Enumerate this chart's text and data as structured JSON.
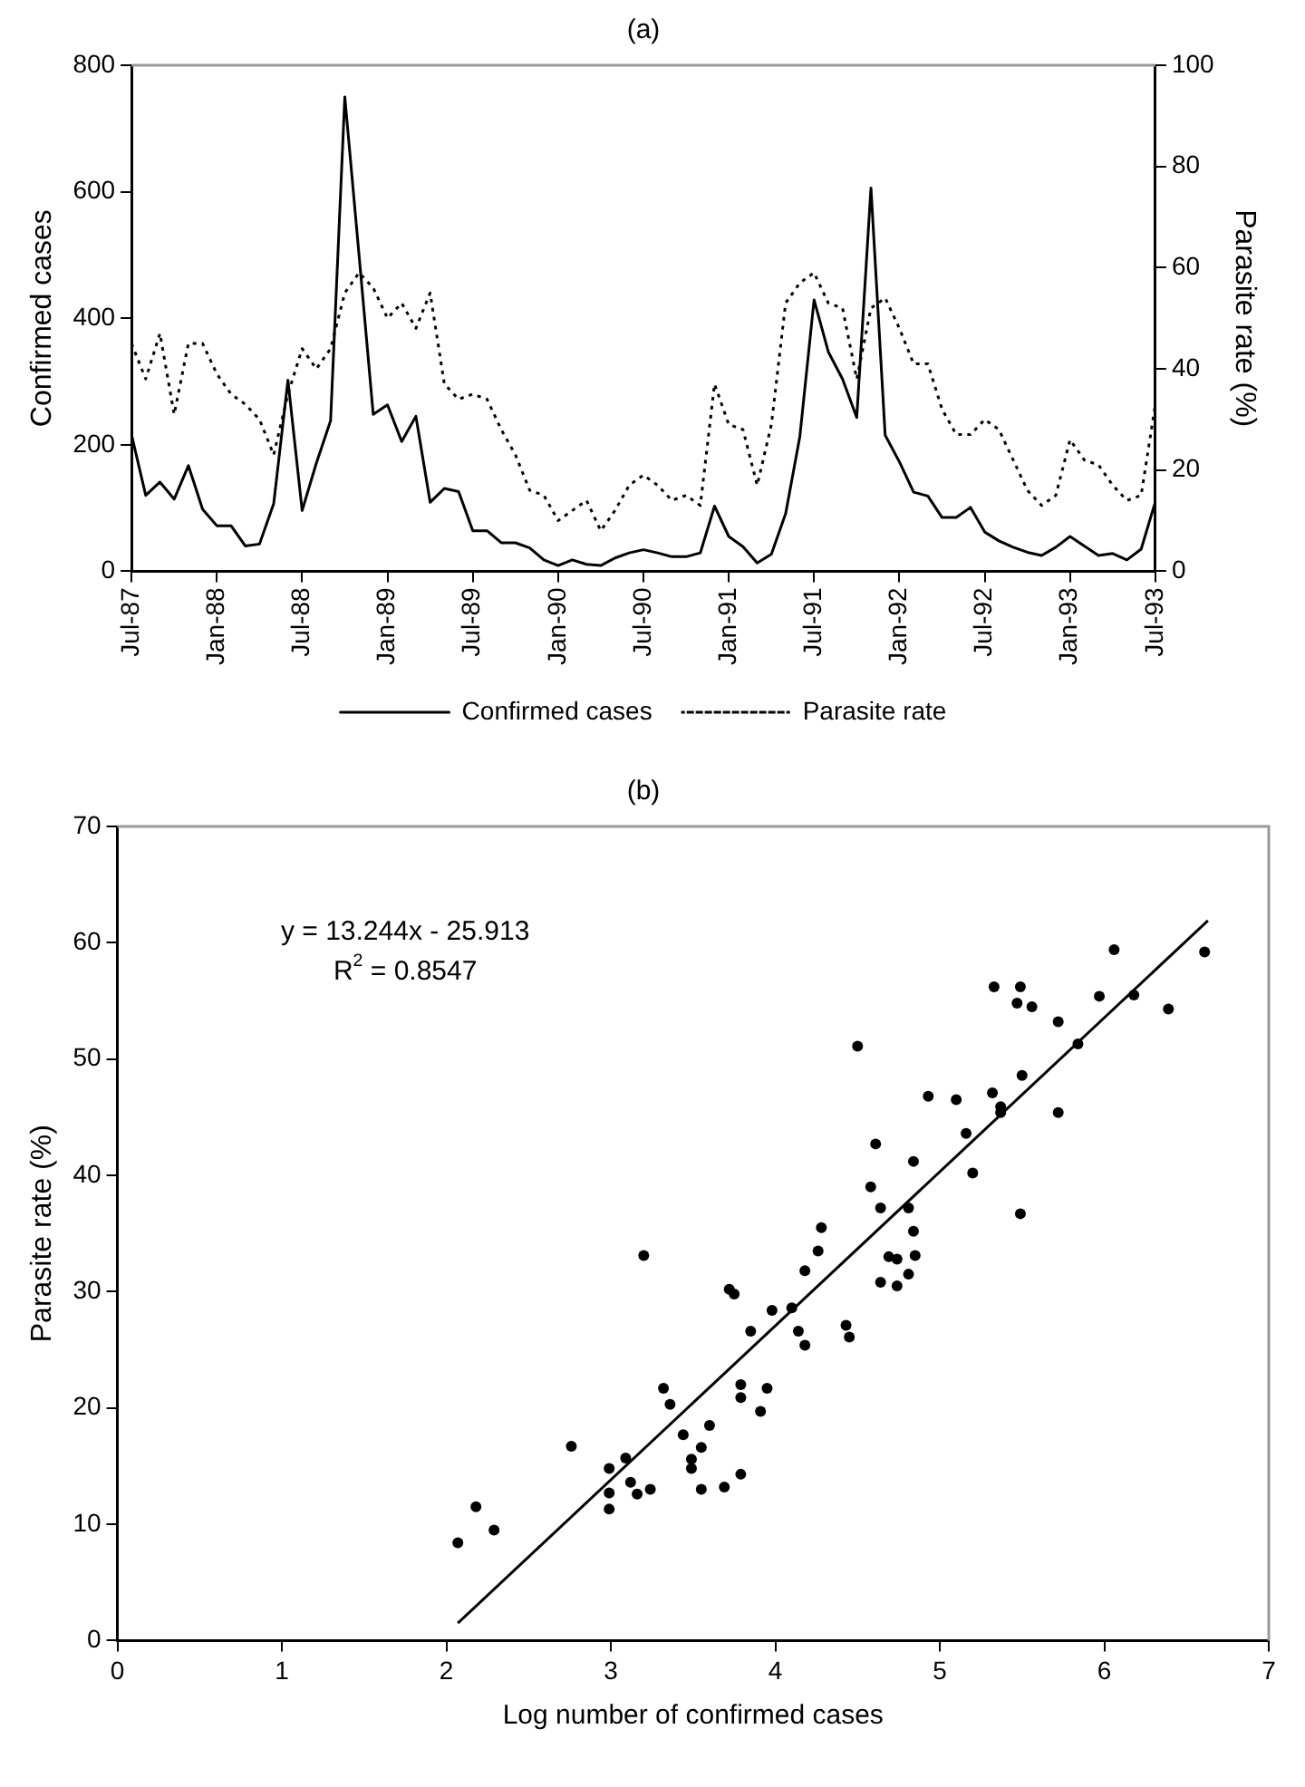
{
  "chart_data": [
    {
      "type": "line",
      "title": "(a)",
      "ylabel": "Confirmed cases",
      "y2label": "Parasite rate (%)",
      "categories": [
        "Jul-87",
        null,
        null,
        null,
        null,
        null,
        "Jan-88",
        null,
        null,
        null,
        null,
        null,
        "Jul-88",
        null,
        null,
        null,
        null,
        null,
        "Jan-89",
        null,
        null,
        null,
        null,
        null,
        "Jul-89",
        null,
        null,
        null,
        null,
        null,
        "Jan-90",
        null,
        null,
        null,
        null,
        null,
        "Jul-90",
        null,
        null,
        null,
        null,
        null,
        "Jan-91",
        null,
        null,
        null,
        null,
        null,
        "Jul-91",
        null,
        null,
        null,
        null,
        null,
        "Jan-92",
        null,
        null,
        null,
        null,
        null,
        "Jul-92",
        null,
        null,
        null,
        null,
        null,
        "Jan-93",
        null,
        null,
        null,
        null,
        null,
        "Jul-93"
      ],
      "series": [
        {
          "name": "Confirmed cases",
          "color": "#000000",
          "line_style": "solid",
          "values": [
            216,
            120,
            141,
            114,
            167,
            98,
            72,
            72,
            40,
            43,
            107,
            302,
            96,
            171,
            238,
            750,
            500,
            248,
            263,
            205,
            245,
            109,
            131,
            126,
            64,
            64,
            45,
            45,
            37,
            18,
            9,
            18,
            11,
            9,
            21,
            29,
            34,
            29,
            23,
            23,
            29,
            103,
            55,
            39,
            13,
            27,
            91,
            213,
            429,
            347,
            304,
            243,
            606,
            215,
            173,
            125,
            119,
            85,
            85,
            101,
            62,
            48,
            38,
            30,
            25,
            38,
            55,
            40,
            25,
            28,
            18,
            35,
            110
          ]
        },
        {
          "name": "Parasite rate",
          "color": "#000000",
          "axis": "y2",
          "line_style": "dotted",
          "values": [
            45,
            38,
            47,
            31,
            45,
            45,
            39,
            35,
            33,
            30,
            23,
            35,
            44,
            40,
            44,
            55,
            59,
            56,
            50,
            53,
            48,
            55,
            37,
            34,
            35,
            34,
            28,
            23,
            16,
            15,
            10,
            12,
            14,
            8,
            12,
            17,
            19,
            17,
            14,
            15,
            13,
            37,
            29,
            28,
            17,
            29,
            53,
            57,
            59,
            53,
            52,
            38,
            52,
            54,
            48,
            41,
            41,
            32,
            27,
            27,
            30,
            28,
            22,
            16,
            13,
            15,
            26,
            22,
            21,
            17,
            14,
            15,
            33
          ]
        }
      ],
      "ylim": [
        0,
        800
      ],
      "yticks": [
        0,
        200,
        400,
        600,
        800
      ],
      "y2lim": [
        0,
        100
      ],
      "y2ticks": [
        0,
        20,
        40,
        60,
        80,
        100
      ],
      "marker": "none",
      "legend": "bottom",
      "grid": false
    },
    {
      "type": "scatter",
      "title": "(b)",
      "xlabel": "Log number of confirmed cases",
      "ylabel": "Parasite rate (%)",
      "annotations": [
        "y = 13.244x - 25.913",
        "R$^{2}$ = 0.8547"
      ],
      "series": [
        {
          "color": "#000000",
          "x": [
            2.07,
            2.18,
            2.29,
            2.76,
            2.99,
            2.99,
            2.99,
            3.09,
            3.12,
            3.16,
            3.24,
            3.2,
            3.32,
            3.36,
            3.44,
            3.49,
            3.49,
            3.55,
            3.55,
            3.6,
            3.69,
            3.79,
            3.79,
            3.79,
            3.91,
            3.95,
            3.72,
            3.75,
            3.85,
            3.98,
            4.1,
            4.14,
            4.18,
            4.18,
            4.26,
            4.28,
            4.43,
            4.45,
            4.5,
            4.58,
            4.61,
            4.64,
            4.64,
            4.69,
            4.74,
            4.74,
            4.81,
            4.81,
            4.84,
            4.84,
            4.85,
            4.93,
            5.1,
            5.16,
            5.2,
            5.32,
            5.33,
            5.37,
            5.37,
            5.49,
            5.47,
            5.5,
            5.56,
            5.49,
            5.72,
            5.72,
            5.84,
            5.97,
            6.06,
            6.18,
            6.39,
            6.61
          ],
          "values": [
            8.4,
            11.5,
            9.5,
            16.7,
            14.8,
            12.7,
            11.3,
            15.7,
            13.6,
            12.6,
            13,
            33.1,
            21.7,
            20.3,
            17.7,
            15.6,
            14.8,
            16.6,
            13,
            18.5,
            13.2,
            14.3,
            22,
            20.9,
            19.7,
            21.7,
            30.2,
            29.8,
            26.6,
            28.4,
            28.6,
            26.6,
            25.4,
            31.8,
            33.5,
            35.5,
            27.1,
            26.1,
            51.1,
            39,
            42.7,
            37.2,
            30.8,
            33,
            32.8,
            30.5,
            37.2,
            31.5,
            35.2,
            41.2,
            33.1,
            46.8,
            46.5,
            43.6,
            40.2,
            47.1,
            56.2,
            45.9,
            45.4,
            56.2,
            54.8,
            48.6,
            54.5,
            36.7,
            53.2,
            45.4,
            51.3,
            55.4,
            59.4,
            55.5,
            54.3,
            59.2
          ]
        },
        {
          "type": "line",
          "marker": "none",
          "color": "#000000",
          "x": [
            2.07,
            6.63
          ],
          "values": [
            1.5,
            61.9
          ]
        }
      ],
      "xlim": [
        0,
        7
      ],
      "xticks": [
        0,
        1,
        2,
        3,
        4,
        5,
        6,
        7
      ],
      "ylim": [
        0,
        70
      ],
      "yticks": [
        0,
        10,
        20,
        30,
        40,
        50,
        60,
        70
      ],
      "marker": "circle",
      "grid": false
    }
  ]
}
